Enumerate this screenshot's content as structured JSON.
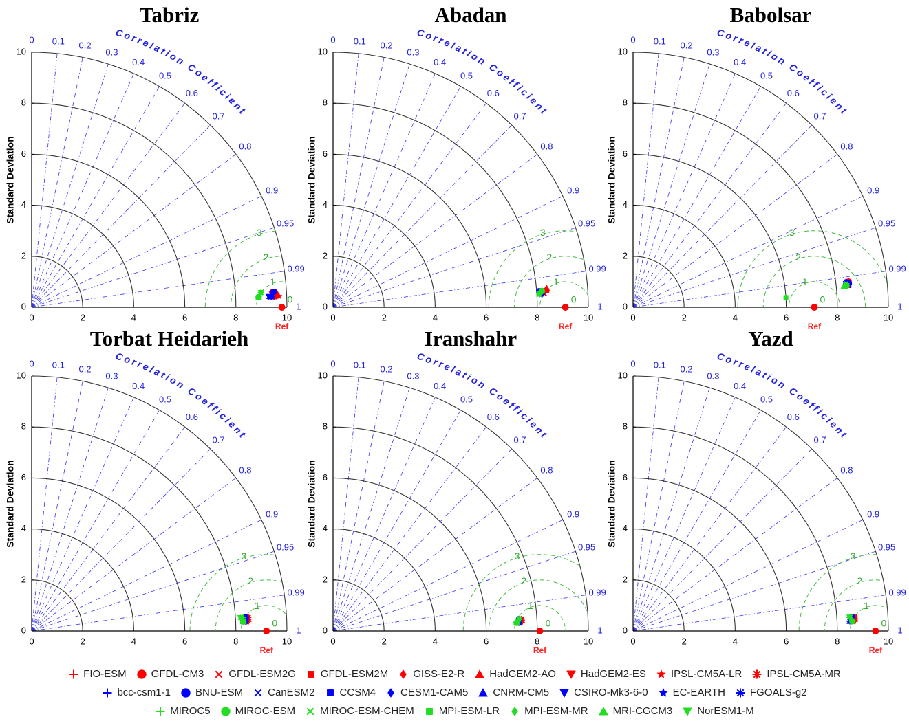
{
  "chart_data": [
    {
      "type": "taylor",
      "title": "Tabriz",
      "y_label": "Standard Deviation",
      "corr_label": "Correlation Coefficient",
      "ref_label": "Ref",
      "ref": 9.8,
      "xlim": [
        0,
        10
      ],
      "ylim": [
        0,
        10
      ],
      "xticks": [
        0,
        2,
        4,
        6,
        8,
        10
      ],
      "yticks": [
        0,
        2,
        4,
        6,
        8,
        10
      ],
      "corr_ticks": [
        0,
        0.1,
        0.2,
        0.3,
        0.4,
        0.5,
        0.6,
        0.7,
        0.8,
        0.9,
        0.95,
        0.99,
        1
      ],
      "rms_ticks": [
        0,
        1,
        2,
        3
      ],
      "std": [
        9.6,
        9.5,
        9.5,
        9.6,
        9.4,
        9.6,
        9.5,
        9.7,
        9.5,
        9.4,
        9.5,
        9.3,
        9.4,
        9.5,
        9.4,
        9.3,
        9.5,
        9.4,
        9.0,
        8.9,
        9.0,
        8.9,
        9.0,
        8.9,
        9.0
      ],
      "corr": [
        0.999,
        0.999,
        0.998,
        0.999,
        0.998,
        0.998,
        0.999,
        0.999,
        0.998,
        0.999,
        0.998,
        0.999,
        0.999,
        0.998,
        0.999,
        0.999,
        0.998,
        0.999,
        0.998,
        0.999,
        0.998,
        0.999,
        0.998,
        0.999,
        0.998
      ]
    },
    {
      "type": "taylor",
      "title": "Abadan",
      "y_label": "Standard Deviation",
      "corr_label": "Correlation Coefficient",
      "ref_label": "Ref",
      "ref": 9.1,
      "xlim": [
        0,
        10
      ],
      "ylim": [
        0,
        10
      ],
      "xticks": [
        0,
        2,
        4,
        6,
        8,
        10
      ],
      "yticks": [
        0,
        2,
        4,
        6,
        8,
        10
      ],
      "corr_ticks": [
        0,
        0.1,
        0.2,
        0.3,
        0.4,
        0.5,
        0.6,
        0.7,
        0.8,
        0.9,
        0.95,
        0.99,
        1
      ],
      "rms_ticks": [
        0,
        1,
        2,
        3
      ],
      "std": [
        8.3,
        8.2,
        8.3,
        8.4,
        8.2,
        8.4,
        8.3,
        8.3,
        8.2,
        8.2,
        8.1,
        8.2,
        8.2,
        8.1,
        8.2,
        8.1,
        8.2,
        8.2,
        8.1,
        8.2,
        8.1,
        8.2,
        8.1,
        8.2,
        8.1
      ],
      "corr": [
        0.997,
        0.997,
        0.998,
        0.997,
        0.998,
        0.996,
        0.997,
        0.997,
        0.998,
        0.998,
        0.997,
        0.998,
        0.997,
        0.998,
        0.997,
        0.998,
        0.997,
        0.998,
        0.998,
        0.997,
        0.998,
        0.997,
        0.998,
        0.997,
        0.998
      ]
    },
    {
      "type": "taylor",
      "title": "Babolsar",
      "y_label": "Standard Deviation",
      "corr_label": "Correlation Coefficient",
      "ref_label": "Ref",
      "ref": 7.1,
      "xlim": [
        0,
        10
      ],
      "ylim": [
        0,
        10
      ],
      "xticks": [
        0,
        2,
        4,
        6,
        8,
        10
      ],
      "yticks": [
        0,
        2,
        4,
        6,
        8,
        10
      ],
      "corr_ticks": [
        0,
        0.1,
        0.2,
        0.3,
        0.4,
        0.5,
        0.6,
        0.7,
        0.8,
        0.9,
        0.95,
        0.99,
        1
      ],
      "rms_ticks": [
        0,
        1,
        2,
        3
      ],
      "std": [
        8.4,
        8.5,
        8.4,
        8.5,
        8.4,
        8.5,
        8.4,
        8.5,
        8.4,
        8.4,
        8.5,
        8.4,
        8.4,
        8.5,
        8.4,
        8.4,
        8.5,
        8.4,
        8.4,
        8.4,
        8.4,
        6.0,
        6.0,
        8.3,
        8.4
      ],
      "corr": [
        0.994,
        0.993,
        0.994,
        0.995,
        0.994,
        0.993,
        0.994,
        0.994,
        0.995,
        0.993,
        0.994,
        0.994,
        0.993,
        0.994,
        0.993,
        0.994,
        0.995,
        0.994,
        0.995,
        0.995,
        0.994,
        0.998,
        0.998,
        0.995,
        0.995
      ]
    },
    {
      "type": "taylor",
      "title": "Torbat Heidarieh",
      "y_label": "Standard Deviation",
      "corr_label": "Correlation Coefficient",
      "ref_label": "Ref",
      "ref": 9.2,
      "xlim": [
        0,
        10
      ],
      "ylim": [
        0,
        10
      ],
      "xticks": [
        0,
        2,
        4,
        6,
        8,
        10
      ],
      "yticks": [
        0,
        2,
        4,
        6,
        8,
        10
      ],
      "corr_ticks": [
        0,
        0.1,
        0.2,
        0.3,
        0.4,
        0.5,
        0.6,
        0.7,
        0.8,
        0.9,
        0.95,
        0.99,
        1
      ],
      "rms_ticks": [
        0,
        1,
        2,
        3
      ],
      "std": [
        8.5,
        8.4,
        8.5,
        8.4,
        8.5,
        8.4,
        8.5,
        8.4,
        8.5,
        8.4,
        8.4,
        8.3,
        8.4,
        8.4,
        8.3,
        8.4,
        8.4,
        8.3,
        8.3,
        8.3,
        8.2,
        8.3,
        8.2,
        8.3,
        8.2
      ],
      "corr": [
        0.999,
        0.999,
        0.998,
        0.999,
        0.998,
        0.998,
        0.999,
        0.999,
        0.998,
        0.999,
        0.998,
        0.999,
        0.999,
        0.998,
        0.999,
        0.999,
        0.998,
        0.999,
        0.998,
        0.999,
        0.998,
        0.999,
        0.998,
        0.999,
        0.998
      ]
    },
    {
      "type": "taylor",
      "title": "Iranshahr",
      "y_label": "Standard Deviation",
      "corr_label": "Correlation Coefficient",
      "ref_label": "Ref",
      "ref": 8.1,
      "xlim": [
        0,
        10
      ],
      "ylim": [
        0,
        10
      ],
      "xticks": [
        0,
        2,
        4,
        6,
        8,
        10
      ],
      "yticks": [
        0,
        2,
        4,
        6,
        8,
        10
      ],
      "corr_ticks": [
        0,
        0.1,
        0.2,
        0.3,
        0.4,
        0.5,
        0.6,
        0.7,
        0.8,
        0.9,
        0.95,
        0.99,
        1
      ],
      "rms_ticks": [
        0,
        1,
        2,
        3
      ],
      "std": [
        7.4,
        7.3,
        7.4,
        7.3,
        7.4,
        7.3,
        7.4,
        7.3,
        7.4,
        7.3,
        7.3,
        7.2,
        7.3,
        7.3,
        7.2,
        7.3,
        7.3,
        7.2,
        7.3,
        7.2,
        7.3,
        7.2,
        7.3,
        7.2,
        7.3
      ],
      "corr": [
        0.999,
        0.999,
        0.998,
        0.999,
        0.998,
        0.998,
        0.999,
        0.999,
        0.998,
        0.999,
        0.998,
        0.999,
        0.999,
        0.998,
        0.999,
        0.999,
        0.998,
        0.999,
        0.998,
        0.999,
        0.998,
        0.999,
        0.998,
        0.999,
        0.998
      ]
    },
    {
      "type": "taylor",
      "title": "Yazd",
      "y_label": "Standard Deviation",
      "corr_label": "Correlation Coefficient",
      "ref_label": "Ref",
      "ref": 9.5,
      "xlim": [
        0,
        10
      ],
      "ylim": [
        0,
        10
      ],
      "xticks": [
        0,
        2,
        4,
        6,
        8,
        10
      ],
      "yticks": [
        0,
        2,
        4,
        6,
        8,
        10
      ],
      "corr_ticks": [
        0,
        0.1,
        0.2,
        0.3,
        0.4,
        0.5,
        0.6,
        0.7,
        0.8,
        0.9,
        0.95,
        0.99,
        1
      ],
      "rms_ticks": [
        0,
        1,
        2,
        3
      ],
      "std": [
        8.7,
        8.6,
        8.7,
        8.6,
        8.7,
        8.6,
        8.7,
        8.6,
        8.7,
        8.6,
        8.6,
        8.5,
        8.6,
        8.6,
        8.5,
        8.6,
        8.6,
        8.5,
        8.5,
        8.6,
        8.5,
        8.6,
        8.5,
        8.6,
        8.5
      ],
      "corr": [
        0.999,
        0.999,
        0.998,
        0.999,
        0.998,
        0.998,
        0.999,
        0.999,
        0.998,
        0.999,
        0.998,
        0.999,
        0.999,
        0.998,
        0.999,
        0.999,
        0.998,
        0.999,
        0.998,
        0.999,
        0.998,
        0.999,
        0.998,
        0.999,
        0.998
      ]
    }
  ],
  "legend": [
    {
      "name": "FIO-ESM",
      "color": "#ff0000",
      "marker": "plus"
    },
    {
      "name": "GFDL-CM3",
      "color": "#ff0000",
      "marker": "circle"
    },
    {
      "name": "GFDL-ESM2G",
      "color": "#ff0000",
      "marker": "x"
    },
    {
      "name": "GFDL-ESM2M",
      "color": "#ff0000",
      "marker": "square"
    },
    {
      "name": "GISS-E2-R",
      "color": "#ff0000",
      "marker": "diamond"
    },
    {
      "name": "HadGEM2-AO",
      "color": "#ff0000",
      "marker": "triangle-up"
    },
    {
      "name": "HadGEM2-ES",
      "color": "#ff0000",
      "marker": "triangle-down"
    },
    {
      "name": "IPSL-CM5A-LR",
      "color": "#ff0000",
      "marker": "star"
    },
    {
      "name": "IPSL-CM5A-MR",
      "color": "#ff0000",
      "marker": "asterisk"
    },
    {
      "name": "bcc-csm1-1",
      "color": "#0000ff",
      "marker": "plus"
    },
    {
      "name": "BNU-ESM",
      "color": "#0000ff",
      "marker": "circle"
    },
    {
      "name": "CanESM2",
      "color": "#0000ff",
      "marker": "x"
    },
    {
      "name": "CCSM4",
      "color": "#0000ff",
      "marker": "square"
    },
    {
      "name": "CESM1-CAM5",
      "color": "#0000ff",
      "marker": "diamond"
    },
    {
      "name": "CNRM-CM5",
      "color": "#0000ff",
      "marker": "triangle-up"
    },
    {
      "name": "CSIRO-Mk3-6-0",
      "color": "#0000ff",
      "marker": "triangle-down"
    },
    {
      "name": "EC-EARTH",
      "color": "#0000ff",
      "marker": "star"
    },
    {
      "name": "FGOALS-g2",
      "color": "#0000ff",
      "marker": "asterisk"
    },
    {
      "name": "MIROC5",
      "color": "#22dd22",
      "marker": "plus"
    },
    {
      "name": "MIROC-ESM",
      "color": "#22dd22",
      "marker": "circle"
    },
    {
      "name": "MIROC-ESM-CHEM",
      "color": "#22dd22",
      "marker": "x"
    },
    {
      "name": "MPI-ESM-LR",
      "color": "#22dd22",
      "marker": "square"
    },
    {
      "name": "MPI-ESM-MR",
      "color": "#22dd22",
      "marker": "diamond"
    },
    {
      "name": "MRI-CGCM3",
      "color": "#22dd22",
      "marker": "triangle-up"
    },
    {
      "name": "NorESM1-M",
      "color": "#22dd22",
      "marker": "triangle-down"
    }
  ]
}
